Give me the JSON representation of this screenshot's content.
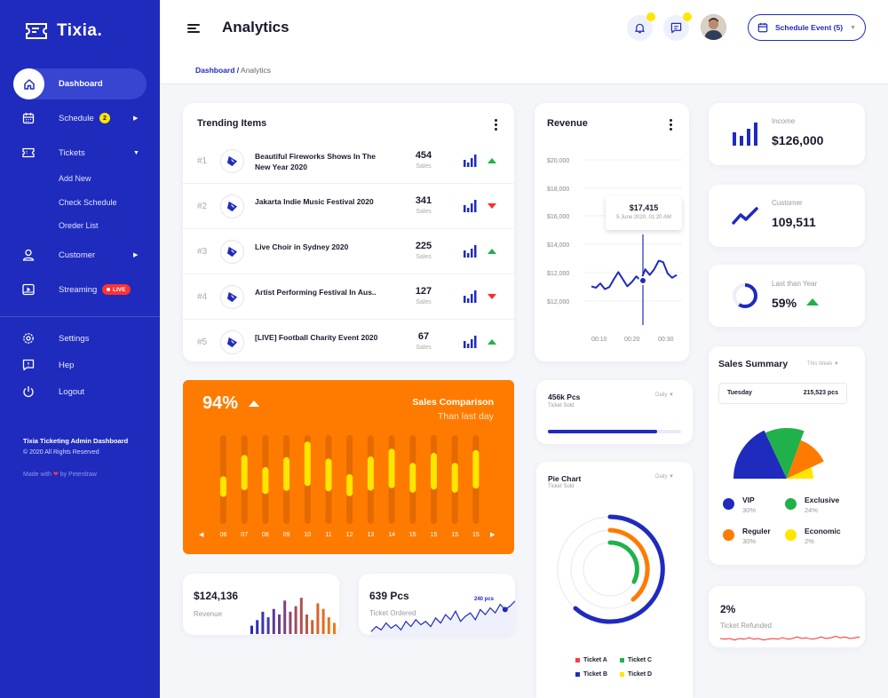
{
  "brand": {
    "name": "Tixia."
  },
  "sidebar": {
    "items": [
      {
        "label": "Dashboard"
      },
      {
        "label": "Schedule",
        "badge": "2"
      },
      {
        "label": "Tickets"
      },
      {
        "label": "Customer"
      },
      {
        "label": "Streaming",
        "badge": "LIVE"
      }
    ],
    "tickets_sub": [
      "Add New",
      "Check Schedule",
      "Oreder List"
    ],
    "bottom_items": [
      {
        "label": "Settings"
      },
      {
        "label": "Hep"
      },
      {
        "label": "Logout"
      }
    ],
    "footer_title": "Tixia Ticketing Admin Dashboard",
    "footer_copy": "© 2020 All Rights Reserved",
    "footer_made_pre": "Made with",
    "footer_made_post": "by Peterdraw"
  },
  "header": {
    "title": "Analytics",
    "schedule_button": "Schedule Event (5)",
    "breadcrumb_root": "Dashboard /",
    "breadcrumb_current": "Analytics"
  },
  "trending": {
    "title": "Trending Items",
    "unit": "Sales",
    "items": [
      {
        "rank": "#1",
        "name": "Beautiful Fireworks Shows In The New Year 2020",
        "sales": "454",
        "trend": "up"
      },
      {
        "rank": "#2",
        "name": "Jakarta Indie Music Festival 2020",
        "sales": "341",
        "trend": "down"
      },
      {
        "rank": "#3",
        "name": "Live Choir in Sydney 2020",
        "sales": "225",
        "trend": "up"
      },
      {
        "rank": "#4",
        "name": "Artist Performing Festival In Aus..",
        "sales": "127",
        "trend": "down"
      },
      {
        "rank": "#5",
        "name": "[LIVE] Football Charity Event 2020",
        "sales": "67",
        "trend": "up"
      }
    ]
  },
  "revenue": {
    "title": "Revenue",
    "tooltip_value": "$17,415",
    "tooltip_date": "5 June 2020, 01:20 AM"
  },
  "stats": {
    "income_label": "Income",
    "income_value": "$126,000",
    "customer_label": "Customer",
    "customer_value": "109,511",
    "lastyear_label": "Last than Year",
    "lastyear_value": "59%",
    "lastyear_fraction": 0.59
  },
  "sales_comparison": {
    "percent": "94%",
    "title": "Sales Comparison",
    "subtitle": "Than last day"
  },
  "tickets_sold": {
    "value": "456k Pcs",
    "label": "Ticket Sold",
    "period": "Daily",
    "progress": 0.82
  },
  "pie_chart": {
    "title": "Pie Chart",
    "subtitle": "Ticket Sold",
    "period": "Daily",
    "legend": [
      {
        "name": "Ticket A",
        "color": "#ff3b3b"
      },
      {
        "name": "Ticket C",
        "color": "#21b14a"
      },
      {
        "name": "Ticket B",
        "color": "#1f2bbd"
      },
      {
        "name": "Ticket D",
        "color": "#ffe600"
      }
    ]
  },
  "sales_summary": {
    "title": "Sales Summary",
    "period": "This Week",
    "day": "Tuesday",
    "day_value": "215,523 pcs",
    "legend": [
      {
        "name": "VIP",
        "pct": "30%",
        "color": "#1f2bbd"
      },
      {
        "name": "Exclusive",
        "pct": "24%",
        "color": "#21b14a"
      },
      {
        "name": "Reguler",
        "pct": "30%",
        "color": "#ff7b00"
      },
      {
        "name": "Economic",
        "pct": "2%",
        "color": "#ffe600"
      }
    ]
  },
  "revenue_mini": {
    "value": "$124,136",
    "label": "Revenue"
  },
  "ticket_ordered": {
    "value": "639 Pcs",
    "label": "Ticket Ordered",
    "peak": "240 pcs"
  },
  "refund": {
    "value": "2%",
    "label": "Ticket Refunded"
  },
  "chart_data": [
    {
      "type": "line",
      "title": "Revenue",
      "x_ticks": [
        "00:10",
        "00:20",
        "00:30"
      ],
      "y_ticks": [
        "$20,000",
        "$18,000",
        "$16,000",
        "$14,000",
        "$12,000",
        "$12,000"
      ],
      "ylim": [
        11000,
        21000
      ],
      "series": [
        {
          "values": [
            12100,
            12000,
            12300,
            11900,
            12050,
            12600,
            13100,
            12600,
            12100,
            12400,
            12800,
            12500,
            13300,
            12900,
            13300,
            13900,
            13800,
            13000,
            12700,
            12900
          ]
        }
      ],
      "grid": true
    },
    {
      "type": "bar",
      "title": "Sales Comparison",
      "categories": [
        "06",
        "07",
        "08",
        "09",
        "10",
        "11",
        "12",
        "13",
        "14",
        "15",
        "15",
        "15",
        "15"
      ],
      "values": [
        0.42,
        0.72,
        0.55,
        0.69,
        0.91,
        0.67,
        0.45,
        0.7,
        0.81,
        0.61,
        0.75,
        0.61,
        0.79
      ],
      "ylim": [
        0,
        1
      ]
    },
    {
      "type": "bar",
      "title": "Revenue",
      "values": [
        3,
        5,
        8,
        6,
        9,
        7,
        12,
        8,
        10,
        13,
        7,
        5,
        11,
        9,
        6,
        4
      ],
      "ylim": [
        0,
        14
      ]
    },
    {
      "type": "area",
      "title": "Ticket Ordered",
      "values": [
        2,
        5,
        3,
        7,
        4,
        6,
        3,
        8,
        5,
        9,
        6,
        8,
        5,
        10,
        7,
        12,
        9,
        14,
        8,
        11,
        13,
        9,
        15,
        12,
        16,
        13,
        18,
        15,
        17,
        20
      ],
      "ylim": [
        0,
        22
      ]
    },
    {
      "type": "line",
      "title": "Ticket Refunded",
      "values": [
        6,
        5,
        6,
        4,
        6,
        5,
        7,
        5,
        6,
        4,
        5,
        6,
        5,
        7,
        5,
        6,
        8,
        6,
        7,
        5,
        6,
        8,
        6,
        7,
        9,
        7,
        8,
        6,
        7,
        8
      ],
      "ylim": [
        0,
        12
      ]
    },
    {
      "type": "pie",
      "title": "Sales Summary",
      "categories": [
        "VIP",
        "Exclusive",
        "Reguler",
        "Economic"
      ],
      "values": [
        30,
        24,
        30,
        2
      ]
    }
  ]
}
